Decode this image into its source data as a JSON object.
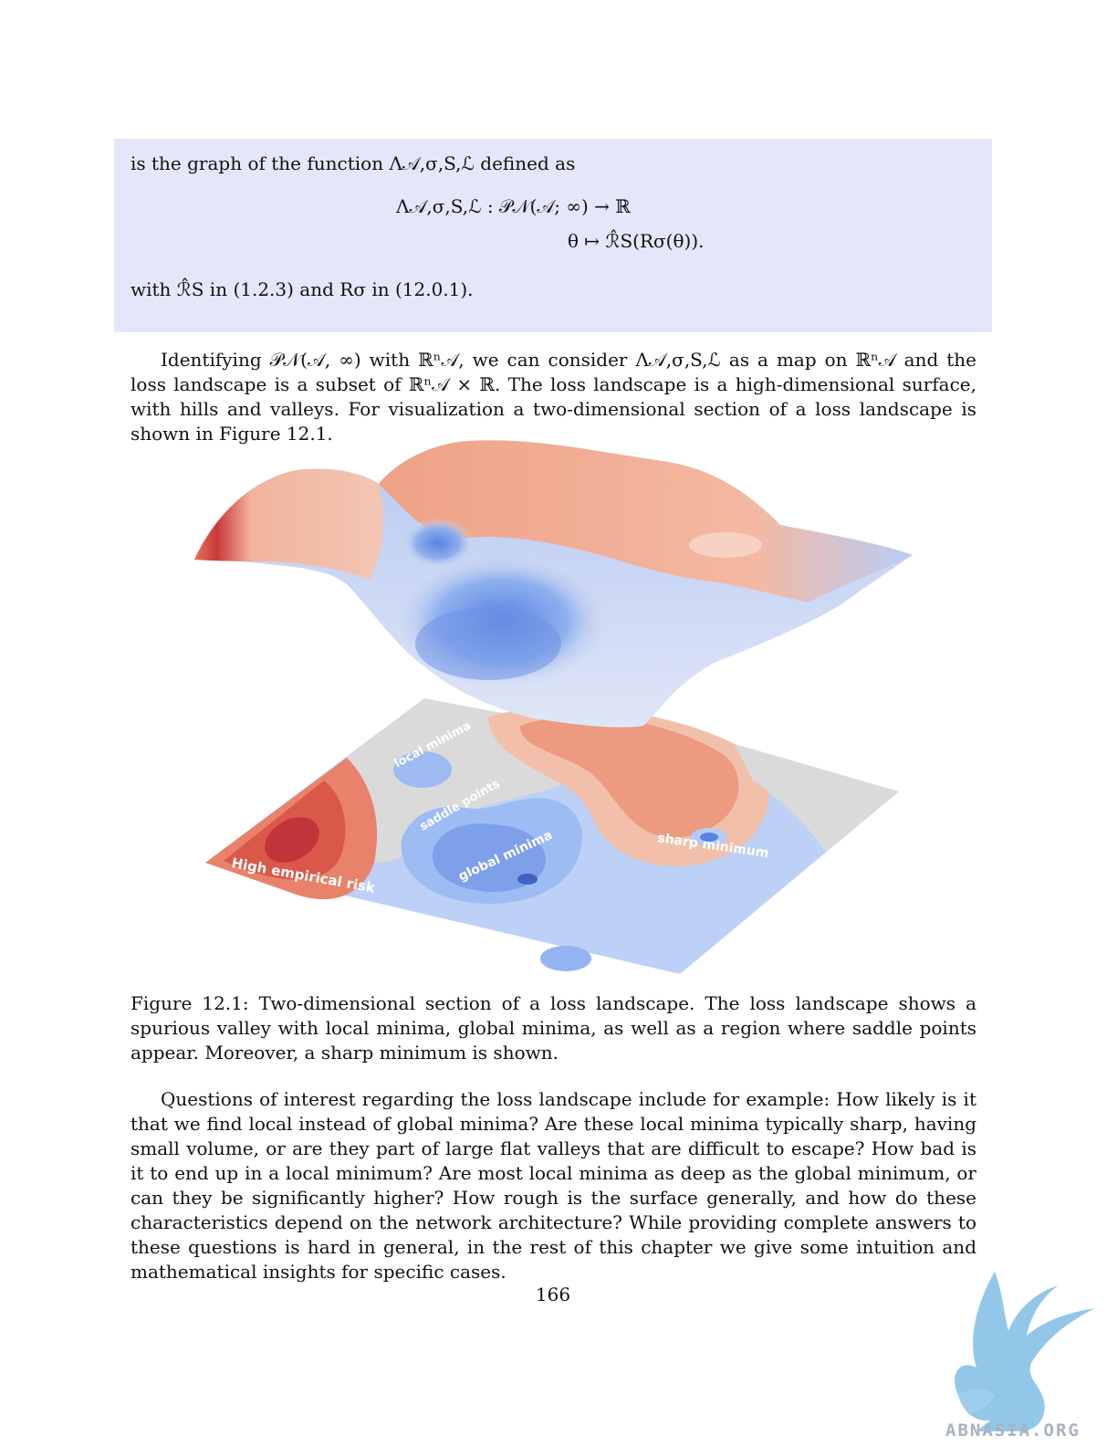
{
  "box": {
    "line1": "is the graph of the function Λ𝒜,σ,S,ℒ defined as",
    "eq1": "Λ𝒜,σ,S,ℒ :  𝒫𝒩(𝒜; ∞) → ℝ",
    "eq2": "θ ↦ ℛ̂S(Rσ(θ)).",
    "line2": "with ℛ̂S in (1.2.3) and Rσ in (12.0.1)."
  },
  "para1": "Identifying 𝒫𝒩(𝒜, ∞) with ℝⁿ𝒜, we can consider Λ𝒜,σ,S,ℒ as a map on ℝⁿ𝒜 and the loss landscape is a subset of ℝⁿ𝒜 × ℝ. The loss landscape is a high-dimensional surface, with hills and valleys. For visualization a two-dimensional section of a loss landscape is shown in Figure 12.1.",
  "figure": {
    "labels": {
      "local": "local minima",
      "saddle": "saddle points",
      "global": "global minima",
      "sharp": "sharp minimum",
      "high": "High empirical risk"
    },
    "colors": {
      "high": "#c8382f",
      "medium_high": "#ea8a6c",
      "mid": "#dcdcdc",
      "low": "#a9c3f4",
      "deep": "#6f95e6"
    }
  },
  "caption": "Figure 12.1: Two-dimensional section of a loss landscape. The loss landscape shows a spurious valley with local minima, global minima, as well as a region where saddle points appear. Moreover, a sharp minimum is shown.",
  "para2": "Questions of interest regarding the loss landscape include for example: How likely is it that we find local instead of global minima? Are these local minima typically sharp, having small volume, or are they part of large flat valleys that are difficult to escape? How bad is it to end up in a local minimum? Are most local minima as deep as the global minimum, or can they be significantly higher? How rough is the surface generally, and how do these characteristics depend on the network architecture? While providing complete answers to these questions is hard in general, in the rest of this chapter we give some intuition and mathematical insights for specific cases.",
  "page_number": "166",
  "watermark": "ABNASIA.ORG"
}
